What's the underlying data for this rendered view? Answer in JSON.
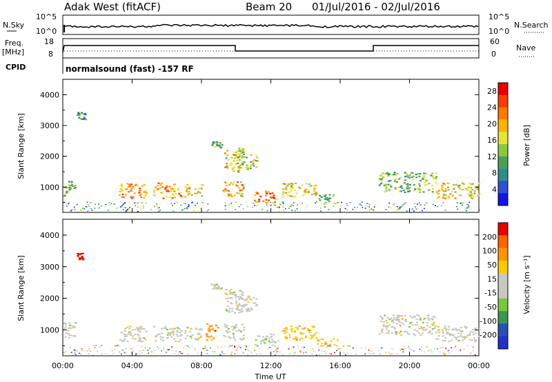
{
  "header": {
    "station": "Adak West (fitACF)",
    "beam": "Beam 20",
    "date_range": "01/Jul/2016 - 02/Jul/2016"
  },
  "nsky_panel": {
    "left_label": "N.Sky",
    "right_label": "N.Search",
    "left_ticks": [
      "10^5",
      "10^0"
    ],
    "right_ticks": [
      "10^5",
      "10^0"
    ]
  },
  "freq_panel": {
    "left_label": "Freq.",
    "left_unit": "[MHz]",
    "right_label": "Nave",
    "left_ticks": [
      "18",
      "8"
    ],
    "right_ticks": [
      "60",
      "0"
    ]
  },
  "cpid_panel": {
    "label": "CPID",
    "text": "normalsound (fast) -157 RF"
  },
  "chart_data": [
    {
      "type": "heatmap",
      "name": "power",
      "ylabel": "Slant Range [km]",
      "xlabel": "",
      "x_range_hours": [
        0,
        24
      ],
      "ylim": [
        180,
        4500
      ],
      "y_ticks": [
        "1000",
        "2000",
        "3000",
        "4000"
      ],
      "x_ticks": [
        "00:00",
        "04:00",
        "08:00",
        "12:00",
        "16:00",
        "20:00",
        "00:00"
      ],
      "colorbar": {
        "label": "Power [dB]",
        "range": [
          0,
          30
        ],
        "ticks": [
          "4",
          "8",
          "12",
          "16",
          "20",
          "24",
          "28"
        ],
        "colors": [
          "#1414e6",
          "#3050d0",
          "#2e8c8c",
          "#4aa05a",
          "#8cc83c",
          "#e6e632",
          "#ffb400",
          "#ff7800",
          "#ff3c00",
          "#e60000"
        ]
      },
      "regions": [
        {
          "t0": 0.0,
          "t1": 0.7,
          "r0": 700,
          "r1": 1250,
          "level": 0.45
        },
        {
          "t0": 0.8,
          "t1": 1.3,
          "r0": 3200,
          "r1": 3450,
          "level": 0.3
        },
        {
          "t0": 3.2,
          "t1": 4.8,
          "r0": 650,
          "r1": 1150,
          "level": 0.7
        },
        {
          "t0": 5.2,
          "t1": 6.8,
          "r0": 650,
          "r1": 1150,
          "level": 0.7
        },
        {
          "t0": 7.0,
          "t1": 8.0,
          "r0": 700,
          "r1": 1100,
          "level": 0.6
        },
        {
          "t0": 8.5,
          "t1": 9.2,
          "r0": 2300,
          "r1": 2500,
          "level": 0.4
        },
        {
          "t0": 9.3,
          "t1": 10.4,
          "r0": 1500,
          "r1": 2300,
          "level": 0.55
        },
        {
          "t0": 10.0,
          "t1": 11.2,
          "r0": 1600,
          "r1": 2100,
          "level": 0.5
        },
        {
          "t0": 9.2,
          "t1": 10.4,
          "r0": 700,
          "r1": 1200,
          "level": 0.65
        },
        {
          "t0": 11.0,
          "t1": 12.4,
          "r0": 500,
          "r1": 900,
          "level": 0.75
        },
        {
          "t0": 12.6,
          "t1": 14.6,
          "r0": 700,
          "r1": 1150,
          "level": 0.6
        },
        {
          "t0": 14.6,
          "t1": 15.8,
          "r0": 500,
          "r1": 800,
          "level": 0.4
        },
        {
          "t0": 18.2,
          "t1": 21.5,
          "r0": 850,
          "r1": 1500,
          "level": 0.4
        },
        {
          "t0": 21.5,
          "t1": 24.0,
          "r0": 650,
          "r1": 1150,
          "level": 0.6
        }
      ]
    },
    {
      "type": "heatmap",
      "name": "velocity",
      "ylabel": "Slant Range [km]",
      "xlabel": "Time UT",
      "x_range_hours": [
        0,
        24
      ],
      "ylim": [
        180,
        4500
      ],
      "y_ticks": [
        "1000",
        "2000",
        "3000",
        "4000"
      ],
      "x_ticks": [
        "00:00",
        "04:00",
        "08:00",
        "12:00",
        "16:00",
        "20:00",
        "00:00"
      ],
      "colorbar": {
        "label": "Velocity [m s⁻¹]",
        "range": [
          -250,
          250
        ],
        "ticks": [
          "200",
          "100",
          "50",
          "15",
          "-15",
          "-50",
          "-100",
          "-200"
        ],
        "colors": [
          "#1e32c8",
          "#2850b4",
          "#3c9650",
          "#78c83c",
          "#c8c8c0",
          "#c8c8c0",
          "#ffc800",
          "#ff9600",
          "#ff6400",
          "#e60000"
        ]
      },
      "regions": [
        {
          "t0": 0.0,
          "t1": 0.7,
          "r0": 700,
          "r1": 1250,
          "level": 0.5
        },
        {
          "t0": 0.8,
          "t1": 1.2,
          "r0": 3250,
          "r1": 3450,
          "level": 0.95
        },
        {
          "t0": 3.2,
          "t1": 4.8,
          "r0": 650,
          "r1": 1150,
          "level": 0.5
        },
        {
          "t0": 5.2,
          "t1": 6.8,
          "r0": 650,
          "r1": 1150,
          "level": 0.5
        },
        {
          "t0": 7.0,
          "t1": 8.0,
          "r0": 700,
          "r1": 1100,
          "level": 0.5
        },
        {
          "t0": 8.2,
          "t1": 8.9,
          "r0": 700,
          "r1": 1250,
          "level": 0.75
        },
        {
          "t0": 8.5,
          "t1": 9.2,
          "r0": 2300,
          "r1": 2500,
          "level": 0.5
        },
        {
          "t0": 9.3,
          "t1": 10.4,
          "r0": 1500,
          "r1": 2300,
          "level": 0.5
        },
        {
          "t0": 10.0,
          "t1": 11.2,
          "r0": 1600,
          "r1": 2100,
          "level": 0.5
        },
        {
          "t0": 9.2,
          "t1": 10.4,
          "r0": 700,
          "r1": 1200,
          "level": 0.5
        },
        {
          "t0": 11.0,
          "t1": 12.4,
          "r0": 500,
          "r1": 900,
          "level": 0.5
        },
        {
          "t0": 12.6,
          "t1": 14.6,
          "r0": 700,
          "r1": 1150,
          "level": 0.65
        },
        {
          "t0": 14.6,
          "t1": 15.8,
          "r0": 500,
          "r1": 800,
          "level": 0.6
        },
        {
          "t0": 18.2,
          "t1": 21.5,
          "r0": 850,
          "r1": 1500,
          "level": 0.5
        },
        {
          "t0": 21.5,
          "t1": 24.0,
          "r0": 650,
          "r1": 1150,
          "level": 0.5
        }
      ]
    }
  ]
}
